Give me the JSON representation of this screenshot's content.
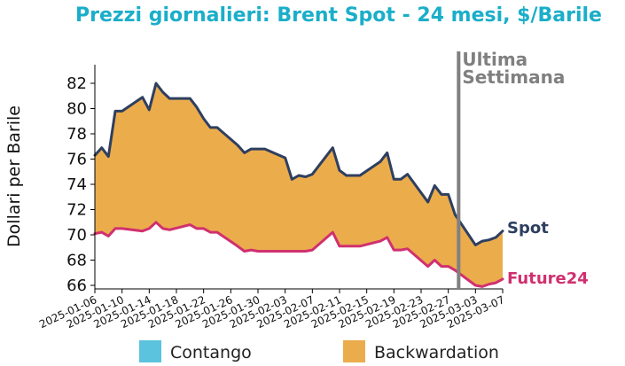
{
  "chart_data": {
    "type": "area",
    "title": "Prezzi giornalieri: Brent Spot - 24 mesi, $/Barile",
    "ylabel": "Dollari per Barile",
    "xlabel": "",
    "ylim": [
      66,
      83.5
    ],
    "yticks": [
      66,
      68,
      70,
      72,
      74,
      76,
      78,
      80,
      82
    ],
    "xlim": [
      "2025-01-06",
      "2025-03-07"
    ],
    "xticks": [
      "2025-01-06",
      "2025-01-10",
      "2025-01-14",
      "2025-01-18",
      "2025-01-22",
      "2025-01-26",
      "2025-01-30",
      "2025-02-03",
      "2025-02-07",
      "2025-02-11",
      "2025-02-15",
      "2025-02-19",
      "2025-02-23",
      "2025-02-27",
      "2025-03-03",
      "2025-03-07"
    ],
    "grid": false,
    "legend_position": "bottom",
    "x": [
      "2025-01-06",
      "2025-01-07",
      "2025-01-08",
      "2025-01-09",
      "2025-01-10",
      "2025-01-13",
      "2025-01-14",
      "2025-01-15",
      "2025-01-16",
      "2025-01-17",
      "2025-01-20",
      "2025-01-21",
      "2025-01-22",
      "2025-01-23",
      "2025-01-24",
      "2025-01-27",
      "2025-01-28",
      "2025-01-29",
      "2025-01-30",
      "2025-01-31",
      "2025-02-03",
      "2025-02-04",
      "2025-02-05",
      "2025-02-06",
      "2025-02-07",
      "2025-02-10",
      "2025-02-11",
      "2025-02-12",
      "2025-02-13",
      "2025-02-14",
      "2025-02-17",
      "2025-02-18",
      "2025-02-19",
      "2025-02-20",
      "2025-02-21",
      "2025-02-24",
      "2025-02-25",
      "2025-02-26",
      "2025-02-27",
      "2025-02-28",
      "2025-03-03",
      "2025-03-04",
      "2025-03-05",
      "2025-03-06",
      "2025-03-07"
    ],
    "series": [
      {
        "name": "Spot",
        "color": "#2e3f60",
        "values": [
          76.3,
          76.9,
          76.2,
          79.8,
          79.8,
          80.9,
          79.9,
          82.0,
          81.3,
          80.8,
          80.8,
          80.1,
          79.2,
          78.5,
          78.5,
          77.1,
          76.5,
          76.8,
          76.8,
          76.8,
          76.1,
          74.4,
          74.7,
          74.6,
          74.8,
          76.9,
          75.1,
          74.7,
          74.7,
          74.7,
          75.8,
          76.5,
          74.4,
          74.4,
          74.8,
          72.6,
          73.9,
          73.2,
          73.2,
          71.6,
          69.2,
          69.5,
          69.6,
          69.8,
          70.3
        ]
      },
      {
        "name": "Future24",
        "color": "#d0306f",
        "values": [
          70.1,
          70.2,
          69.9,
          70.5,
          70.5,
          70.3,
          70.5,
          71.0,
          70.5,
          70.4,
          70.8,
          70.5,
          70.5,
          70.2,
          70.2,
          69.1,
          68.7,
          68.8,
          68.7,
          68.7,
          68.7,
          68.7,
          68.7,
          68.7,
          68.8,
          70.2,
          69.1,
          69.1,
          69.1,
          69.1,
          69.5,
          69.8,
          68.8,
          68.8,
          68.9,
          67.5,
          68.0,
          67.5,
          67.5,
          67.2,
          66.0,
          65.9,
          66.1,
          66.2,
          66.5
        ]
      }
    ],
    "vline": {
      "x": "2025-02-28",
      "label": "Ultima Settimana",
      "color": "#808080"
    },
    "legend": [
      {
        "label": "Contango",
        "color": "#5bc3dd"
      },
      {
        "label": "Backwardation",
        "color": "#ebac4c"
      }
    ]
  }
}
